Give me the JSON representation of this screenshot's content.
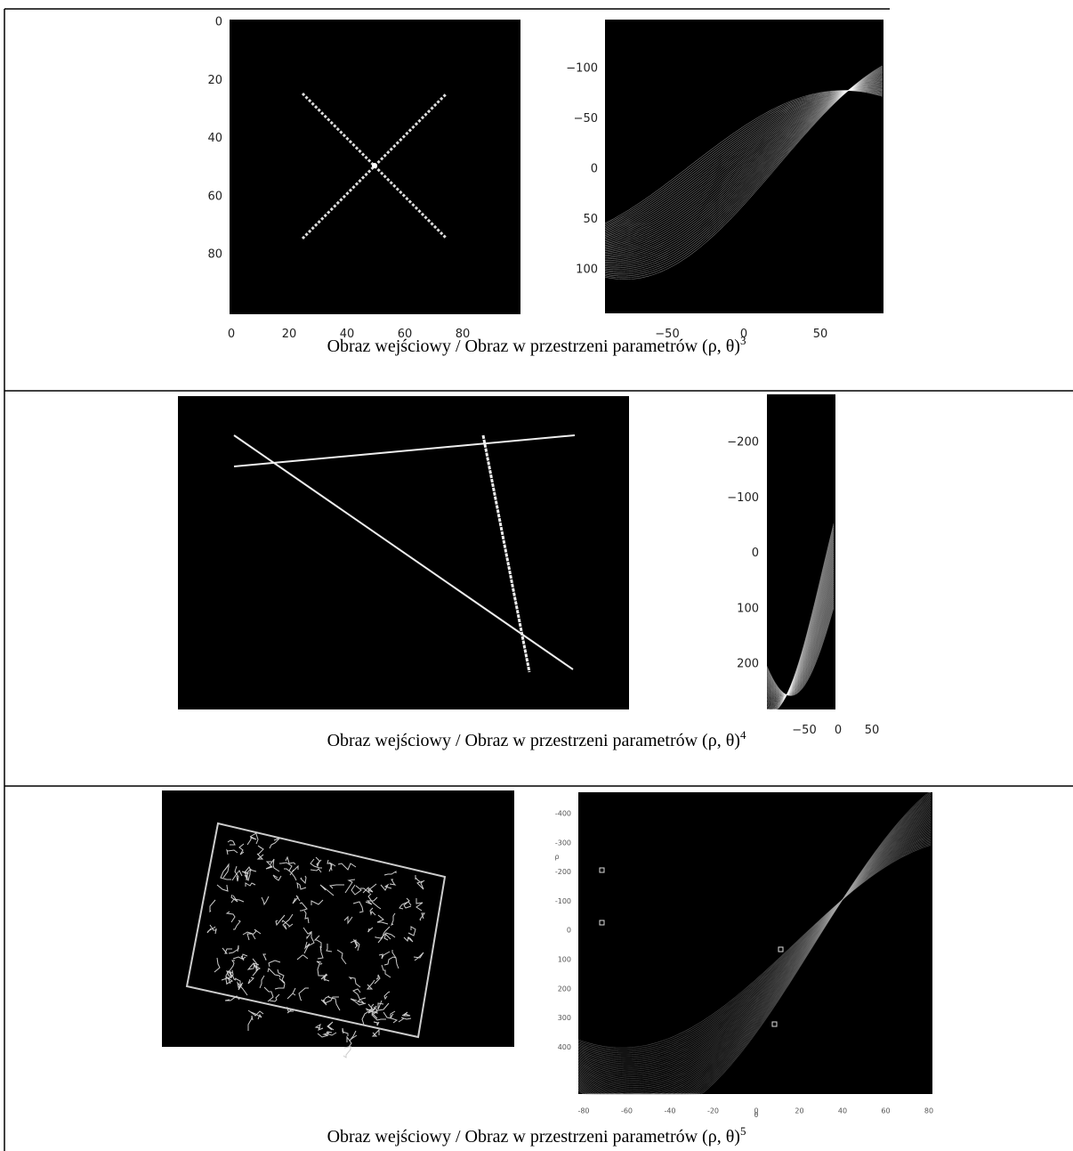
{
  "rows": [
    {
      "left": {
        "xticks": [
          "0",
          "20",
          "40",
          "60",
          "80"
        ],
        "yticks": [
          "0",
          "20",
          "40",
          "60",
          "80"
        ]
      },
      "right": {
        "xticks": [
          "−50",
          "0",
          "50"
        ],
        "yticks": [
          "−100",
          "−50",
          "0",
          "50",
          "100"
        ]
      },
      "caption": "Obraz wejściowy / Obraz w przestrzeni parametrów (ρ, θ)",
      "note": "3"
    },
    {
      "right": {
        "xticks": [
          "−50",
          "0",
          "50"
        ],
        "yticks": [
          "−200",
          "−100",
          "0",
          "100",
          "200"
        ]
      },
      "caption": "Obraz wejściowy / Obraz w przestrzeni parametrów (ρ, θ)",
      "note": "4"
    },
    {
      "right": {
        "xticks": [
          "-80",
          "-60",
          "-40",
          "-20",
          "0",
          "20",
          "40",
          "60",
          "80"
        ],
        "yticks": [
          "-400",
          "-300",
          "-200",
          "-100",
          "0",
          "100",
          "200",
          "300",
          "400"
        ],
        "xlabel": "θ",
        "ylabel": "ρ"
      },
      "caption": "Obraz wejściowy / Obraz w przestrzeni parametrów (ρ, θ)",
      "note": "5"
    }
  ]
}
